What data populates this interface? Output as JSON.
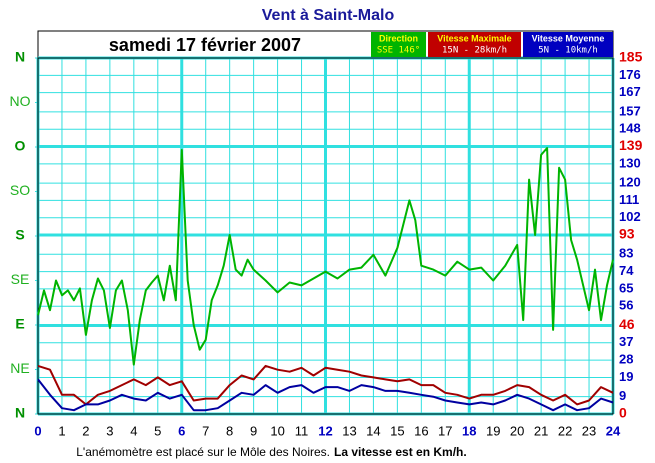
{
  "chart_data": {
    "type": "line",
    "title": "Vent à Saint-Malo",
    "subtitle": "samedi 17 février 2007",
    "footnote": "L'anémomètre est placé sur le Môle des Noires.",
    "footnote_bold": "La vitesse est en Km/h.",
    "xlim": [
      0,
      24
    ],
    "xticks": [
      0,
      1,
      2,
      3,
      4,
      5,
      6,
      7,
      8,
      9,
      10,
      11,
      12,
      13,
      14,
      15,
      16,
      17,
      18,
      19,
      20,
      21,
      22,
      23,
      24
    ],
    "ylim": [
      0,
      360
    ],
    "yticks": [
      {
        "value": 0,
        "label": "N"
      },
      {
        "value": 45,
        "label": "NE"
      },
      {
        "value": 90,
        "label": "E"
      },
      {
        "value": 135,
        "label": "SE"
      },
      {
        "value": 180,
        "label": "S"
      },
      {
        "value": 225,
        "label": "SO"
      },
      {
        "value": 270,
        "label": "O"
      },
      {
        "value": 315,
        "label": "NO"
      },
      {
        "value": 360,
        "label": "N"
      }
    ],
    "y2lim": [
      0,
      185
    ],
    "y2ticks": [
      0,
      9,
      19,
      28,
      37,
      46,
      56,
      65,
      74,
      83,
      93,
      102,
      111,
      120,
      130,
      139,
      148,
      157,
      167,
      176,
      185
    ],
    "grid": true,
    "series": [
      {
        "name": "Direction",
        "summary": "SSE 146°",
        "color": "#00b400",
        "axis": "y",
        "x": [
          0,
          0.25,
          0.5,
          0.75,
          1,
          1.25,
          1.5,
          1.75,
          2,
          2.25,
          2.5,
          2.75,
          3,
          3.25,
          3.5,
          3.75,
          4,
          4.25,
          4.5,
          4.75,
          5,
          5.25,
          5.5,
          5.75,
          6,
          6.25,
          6.5,
          6.75,
          7,
          7.25,
          7.5,
          7.75,
          8,
          8.25,
          8.5,
          8.75,
          9,
          9.5,
          10,
          10.5,
          11,
          11.5,
          12,
          12.5,
          13,
          13.5,
          14,
          14.5,
          15,
          15.5,
          15.75,
          16,
          16.5,
          17,
          17.5,
          18,
          18.5,
          19,
          19.5,
          20,
          20.25,
          20.5,
          20.75,
          21,
          21.25,
          21.5,
          21.75,
          22,
          22.25,
          22.5,
          23,
          23.25,
          23.5,
          23.75,
          24
        ],
        "values": [
          100,
          125,
          105,
          135,
          120,
          125,
          115,
          127,
          80,
          115,
          137,
          125,
          87,
          125,
          135,
          105,
          50,
          95,
          125,
          133,
          140,
          115,
          150,
          115,
          267,
          135,
          90,
          65,
          75,
          115,
          130,
          150,
          181,
          146,
          140,
          156,
          146,
          135,
          123,
          133,
          130,
          137,
          144,
          137,
          146,
          148,
          161,
          140,
          168,
          216,
          196,
          150,
          146,
          140,
          154,
          146,
          148,
          135,
          150,
          171,
          95,
          237,
          181,
          262,
          269,
          85,
          249,
          237,
          176,
          156,
          105,
          146,
          95,
          130,
          156
        ]
      },
      {
        "name": "Vitesse Maximale",
        "summary": "15N - 28km/h",
        "color": "#a00000",
        "axis": "y2",
        "x": [
          0,
          0.5,
          1,
          1.5,
          2,
          2.5,
          3,
          3.5,
          4,
          4.5,
          5,
          5.5,
          6,
          6.5,
          7,
          7.5,
          8,
          8.5,
          9,
          9.5,
          10,
          10.5,
          11,
          11.5,
          12,
          12.5,
          13,
          13.5,
          14,
          14.5,
          15,
          15.5,
          16,
          16.5,
          17,
          17.5,
          18,
          18.5,
          19,
          19.5,
          20,
          20.5,
          21,
          21.5,
          22,
          22.5,
          23,
          23.5,
          24
        ],
        "values": [
          25,
          23,
          10,
          10,
          5,
          10,
          12,
          15,
          18,
          15,
          19,
          15,
          17,
          7,
          8,
          8,
          15,
          20,
          18,
          25,
          23,
          22,
          24,
          20,
          24,
          23,
          22,
          20,
          19,
          18,
          17,
          18,
          15,
          15,
          11,
          10,
          8,
          10,
          10,
          12,
          15,
          14,
          10,
          7,
          10,
          5,
          7,
          14,
          11
        ]
      },
      {
        "name": "Vitesse Moyenne",
        "summary": "5N - 10km/h",
        "color": "#0000a0",
        "axis": "y2",
        "x": [
          0,
          0.5,
          1,
          1.5,
          2,
          2.5,
          3,
          3.5,
          4,
          4.5,
          5,
          5.5,
          6,
          6.5,
          7,
          7.5,
          8,
          8.5,
          9,
          9.5,
          10,
          10.5,
          11,
          11.5,
          12,
          12.5,
          13,
          13.5,
          14,
          14.5,
          15,
          15.5,
          16,
          16.5,
          17,
          17.5,
          18,
          18.5,
          19,
          19.5,
          20,
          20.5,
          21,
          21.5,
          22,
          22.5,
          23,
          23.5,
          24
        ],
        "values": [
          18,
          10,
          3,
          2,
          5,
          5,
          7,
          10,
          8,
          7,
          11,
          8,
          10,
          2,
          2,
          3,
          7,
          11,
          10,
          15,
          11,
          14,
          15,
          11,
          14,
          14,
          12,
          15,
          14,
          12,
          12,
          11,
          10,
          9,
          7,
          6,
          5,
          6,
          5,
          7,
          10,
          8,
          5,
          2,
          5,
          2,
          3,
          8,
          6
        ]
      }
    ]
  }
}
